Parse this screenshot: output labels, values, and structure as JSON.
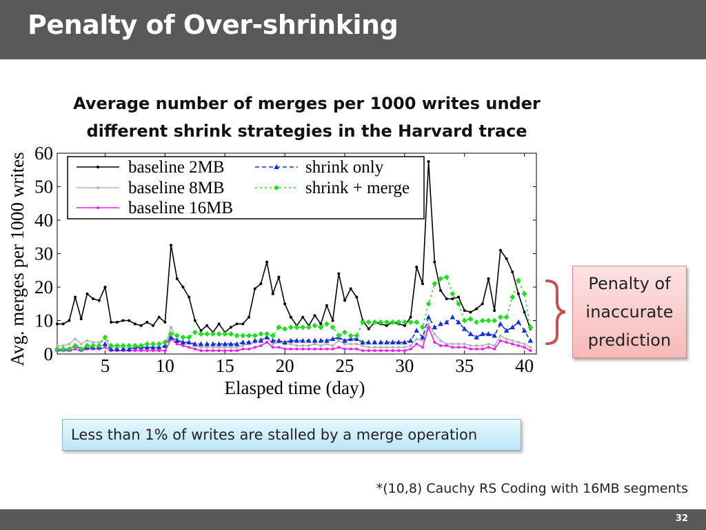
{
  "slide": {
    "title": "Penalty of Over-shrinking",
    "heading_line1": "Average number of merges per 1000 writes under",
    "heading_line2": "different shrink strategies in the Harvard trace",
    "callout_lines": [
      "Penalty of",
      "inaccurate",
      "prediction"
    ],
    "note": "Less than 1% of writes are stalled by a merge operation",
    "footnote": "*(10,8) Cauchy RS Coding with 16MB segments",
    "page_number": "32"
  },
  "chart_data": {
    "type": "line",
    "xlabel": "Elasped time (day)",
    "ylabel": "Avg. merges per 1000 writes",
    "xlim": [
      1,
      41
    ],
    "ylim": [
      0,
      60
    ],
    "xticks": [
      5,
      10,
      15,
      20,
      25,
      30,
      35,
      40
    ],
    "yticks": [
      0,
      10,
      20,
      30,
      40,
      50,
      60
    ],
    "grid": false,
    "legend_position": "top-left",
    "x_start": 1,
    "x_step": 0.5,
    "series": [
      {
        "name": "baseline 2MB",
        "color": "#000000",
        "dash": "",
        "marker": "circle",
        "values": [
          9,
          9,
          10,
          17,
          10.5,
          18,
          16.5,
          16,
          20,
          9.5,
          9.5,
          10,
          10,
          9,
          8.5,
          9.5,
          8.5,
          11,
          9.5,
          32.5,
          22.5,
          20,
          17,
          10,
          7,
          8.5,
          6.5,
          9,
          6.5,
          8,
          9,
          9,
          11,
          19.5,
          21,
          27.5,
          18,
          23,
          15,
          11,
          8.5,
          11,
          8.5,
          11.5,
          9,
          14.5,
          10,
          24,
          16,
          19.5,
          17,
          10,
          7.5,
          9.5,
          9,
          8.5,
          9.5,
          9,
          8.5,
          11,
          26,
          21,
          57.5,
          27.5,
          19,
          16.5,
          16.5,
          17,
          13,
          12.5,
          13.5,
          15,
          22.5,
          13,
          31,
          28.5,
          24.5,
          18,
          12.5,
          7.5
        ]
      },
      {
        "name": "baseline 8MB",
        "color": "#b4b4b4",
        "dash": "",
        "marker": "circle",
        "values": [
          2.5,
          2.5,
          3,
          4.5,
          3,
          4,
          3.5,
          3.5,
          4.5,
          2,
          2,
          2,
          2,
          2,
          2,
          2,
          2,
          2,
          2,
          8,
          4.5,
          3.5,
          3.5,
          2.5,
          2,
          2,
          2,
          2,
          2,
          2,
          2,
          2.5,
          3,
          3.5,
          4.5,
          5,
          3,
          3.5,
          3,
          3,
          2.5,
          2.5,
          2.5,
          3,
          2.5,
          3,
          2.5,
          4,
          3,
          3,
          3,
          2.5,
          2,
          2,
          2,
          2,
          2,
          2,
          2,
          2.5,
          4.5,
          4,
          9,
          6,
          4,
          3,
          3,
          3,
          3,
          2.5,
          2.5,
          2.5,
          3,
          2.5,
          5.5,
          4.5,
          4,
          3.5,
          3,
          2
        ]
      },
      {
        "name": "baseline 16MB",
        "color": "#ee1dee",
        "dash": "",
        "marker": "circle",
        "values": [
          1,
          1,
          1,
          1.5,
          1,
          1.5,
          1.5,
          1.5,
          2,
          1,
          1,
          1,
          1,
          1,
          1,
          1,
          1,
          1,
          1,
          4.5,
          3,
          2.5,
          2,
          1.5,
          1,
          1,
          1,
          1,
          1,
          1,
          1,
          1.5,
          1.5,
          2,
          2.5,
          3.5,
          2,
          2,
          1.5,
          1.5,
          1.5,
          1.5,
          1.5,
          1.5,
          1.5,
          1.5,
          1.5,
          2,
          1.5,
          1.5,
          1.5,
          1,
          1,
          1,
          1,
          1,
          1,
          1,
          1,
          1.5,
          3,
          2,
          8,
          3.5,
          2.5,
          2.5,
          2,
          2,
          2,
          1.5,
          1.5,
          1.5,
          2,
          1.5,
          4,
          3.5,
          3,
          2.5,
          2,
          1
        ]
      },
      {
        "name": "shrink only",
        "color": "#1530d6",
        "dash": "6,4",
        "marker": "triangle",
        "values": [
          1.5,
          1.5,
          1.5,
          2.5,
          1.5,
          2,
          2,
          2,
          3,
          1.5,
          1.5,
          1.5,
          1.5,
          2,
          2,
          2,
          2,
          2,
          2.5,
          5,
          4,
          3.5,
          3.5,
          3,
          3,
          3,
          3,
          3,
          3,
          3,
          3,
          3.5,
          3.5,
          4,
          4,
          5,
          4,
          4,
          3.5,
          4,
          4,
          4,
          4,
          4,
          4,
          4,
          4.5,
          5,
          4,
          4.5,
          4.5,
          3.5,
          3.5,
          3.5,
          3.5,
          3.5,
          3.5,
          3.5,
          3.5,
          4,
          7,
          5,
          11,
          8,
          9,
          9.5,
          11,
          9.5,
          7.5,
          6,
          5,
          6,
          6,
          5.5,
          9,
          7,
          8,
          9.5,
          7,
          4
        ]
      },
      {
        "name": "shrink + merge",
        "color": "#22dd22",
        "dash": "3,4",
        "marker": "diamond",
        "values": [
          1.5,
          1.5,
          1.5,
          2.5,
          1.5,
          2.5,
          2.5,
          2.5,
          5,
          2.5,
          2.5,
          2.5,
          2.5,
          2.5,
          2.5,
          3,
          3,
          3,
          3.5,
          6,
          5.5,
          5,
          5,
          6.5,
          6,
          6,
          6,
          6,
          6,
          6,
          5.5,
          5.5,
          5.5,
          5.5,
          6,
          6,
          5.5,
          8,
          7.5,
          8,
          8,
          8,
          8,
          8.5,
          8,
          9,
          8,
          5.5,
          6.5,
          5.5,
          5.5,
          9.5,
          9.5,
          9.5,
          9.5,
          9.5,
          9.5,
          9.5,
          9.5,
          9.5,
          9.5,
          8,
          15,
          21,
          22.5,
          23,
          18,
          15,
          10,
          10.5,
          9.5,
          10,
          10,
          10,
          11,
          11,
          17,
          22,
          18,
          8
        ]
      }
    ]
  }
}
